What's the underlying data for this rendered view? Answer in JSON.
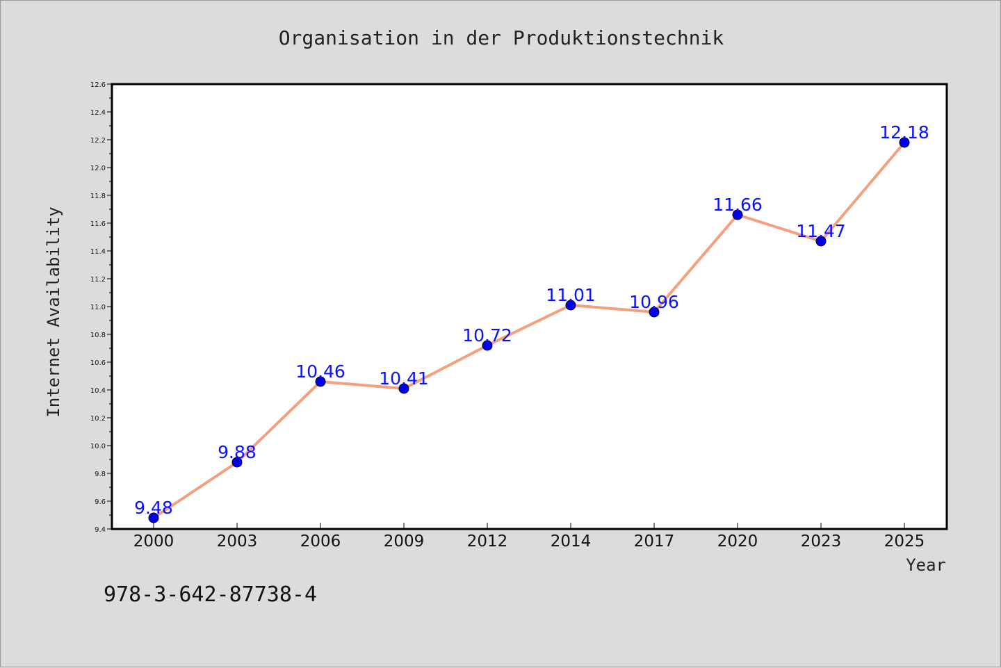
{
  "chart_data": {
    "type": "line",
    "title": "Organisation in der Produktionstechnik",
    "xlabel": "Year",
    "ylabel": "Internet Availability",
    "categories": [
      "2000",
      "2003",
      "2006",
      "2009",
      "2012",
      "2014",
      "2017",
      "2020",
      "2023",
      "2025"
    ],
    "values": [
      9.48,
      9.88,
      10.46,
      10.41,
      10.72,
      11.01,
      10.96,
      11.66,
      11.47,
      12.18
    ],
    "data_labels": [
      "9.48",
      "9.88",
      "10.46",
      "10.41",
      "10.72",
      "11.01",
      "10.96",
      "11.66",
      "11.47",
      "12.18"
    ],
    "ylim": [
      9.4,
      12.6
    ],
    "yticks": [
      "9.4",
      "9.6",
      "9.8",
      "10.0",
      "10.2",
      "10.4",
      "10.6",
      "10.8",
      "11.0",
      "11.2",
      "11.4",
      "11.6",
      "11.8",
      "12.0",
      "12.2",
      "12.4",
      "12.6"
    ],
    "grid": false,
    "legend": "none",
    "line_color": "#f4a07e",
    "marker_color": "#0000ee",
    "label_color": "#0a10ff"
  },
  "footer": {
    "note": "978-3-642-87738-4"
  }
}
